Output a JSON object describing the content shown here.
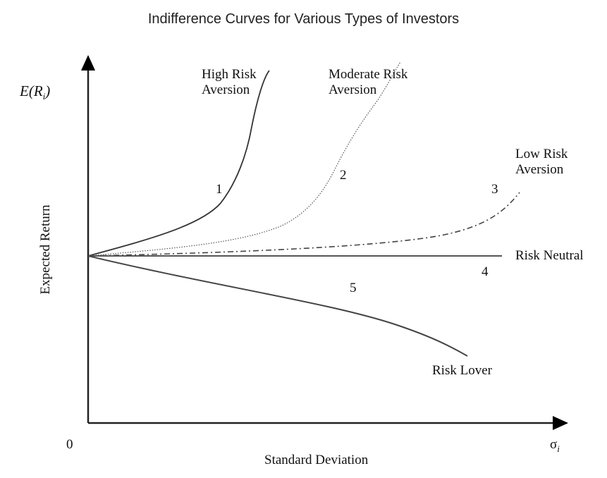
{
  "title": "Indifference Curves for Various Types of Investors",
  "axes": {
    "y_symbol_prefix": "E(R",
    "y_symbol_sub": "i",
    "y_symbol_suffix": ")",
    "y_label": "Expected Return",
    "x_label": "Standard Deviation",
    "x_symbol": "σ",
    "x_symbol_sub": "i",
    "origin": "0"
  },
  "curves": [
    {
      "number": "1",
      "label_line1": "High Risk",
      "label_line2": "Aversion",
      "style": "solid"
    },
    {
      "number": "2",
      "label_line1": "Moderate Risk",
      "label_line2": "Aversion",
      "style": "dotted"
    },
    {
      "number": "3",
      "label_line1": "Low Risk",
      "label_line2": "Aversion",
      "style": "dash-dot"
    },
    {
      "number": "4",
      "label_line1": "Risk Neutral",
      "style": "solid"
    },
    {
      "number": "5",
      "label_line1": "Risk Lover",
      "style": "solid"
    }
  ],
  "colors": {
    "line": "#333333",
    "text": "#111111"
  }
}
